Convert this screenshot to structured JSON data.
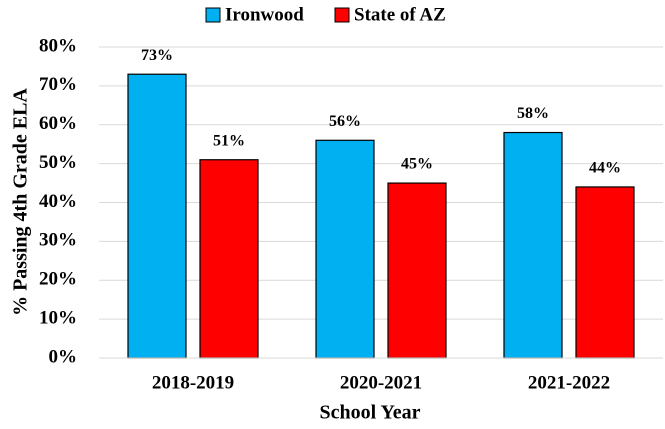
{
  "chart_data": {
    "type": "bar",
    "categories": [
      "2018-2019",
      "2020-2021",
      "2021-2022"
    ],
    "series": [
      {
        "name": "Ironwood",
        "color": "#00b0f0",
        "values": [
          73,
          56,
          58
        ],
        "value_labels": [
          "73%",
          "56%",
          "58%"
        ]
      },
      {
        "name": "State of AZ",
        "color": "#ff0000",
        "values": [
          51,
          45,
          44
        ],
        "value_labels": [
          "51%",
          "45%",
          "44%"
        ]
      }
    ],
    "xlabel": "School Year",
    "ylabel": "% Passing 4th Grade ELA",
    "ylim": [
      0,
      80
    ],
    "yticks": [
      {
        "value": 0,
        "label": "0%"
      },
      {
        "value": 10,
        "label": "10%"
      },
      {
        "value": 20,
        "label": "20%"
      },
      {
        "value": 30,
        "label": "30%"
      },
      {
        "value": 40,
        "label": "40%"
      },
      {
        "value": 50,
        "label": "50%"
      },
      {
        "value": 60,
        "label": "60%"
      },
      {
        "value": 70,
        "label": "70%"
      },
      {
        "value": 80,
        "label": "80%"
      }
    ],
    "grid": true,
    "legend": "top"
  }
}
